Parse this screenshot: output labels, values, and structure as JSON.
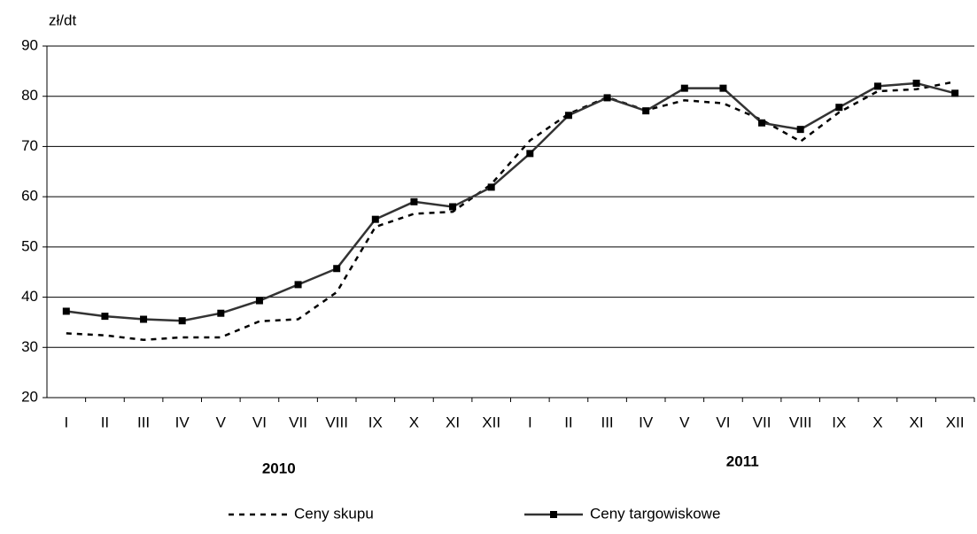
{
  "chart_data": {
    "type": "line",
    "y_label": "zł/dt",
    "categories": [
      "I",
      "II",
      "III",
      "IV",
      "V",
      "VI",
      "VII",
      "VIII",
      "IX",
      "X",
      "XI",
      "XII",
      "I",
      "II",
      "III",
      "IV",
      "V",
      "VI",
      "VII",
      "VIII",
      "IX",
      "X",
      "XI",
      "XII"
    ],
    "year_labels": [
      "2010",
      "2011"
    ],
    "series": [
      {
        "name": "Ceny skupu",
        "color": "#000000",
        "style": "dashed",
        "marker": null,
        "values": [
          32.8,
          32.4,
          31.5,
          32.0,
          32.0,
          35.2,
          35.6,
          41.0,
          54.0,
          56.6,
          57.0,
          62.5,
          71.2,
          76.5,
          79.8,
          77.2,
          79.2,
          78.6,
          75.3,
          71.0,
          76.8,
          81.0,
          81.4,
          82.9
        ]
      },
      {
        "name": "Ceny targowiskowe",
        "color": "#333333",
        "style": "solid",
        "marker": "square",
        "values": [
          37.2,
          36.2,
          35.6,
          35.3,
          36.8,
          39.3,
          42.5,
          45.7,
          55.5,
          59.0,
          58.0,
          61.9,
          68.6,
          76.2,
          79.7,
          77.1,
          81.6,
          81.6,
          74.7,
          73.4,
          77.8,
          82.0,
          82.6,
          80.6
        ]
      }
    ],
    "ylim": [
      20,
      90
    ],
    "yticks": [
      20,
      30,
      40,
      50,
      60,
      70,
      80,
      90
    ],
    "grid": true
  }
}
